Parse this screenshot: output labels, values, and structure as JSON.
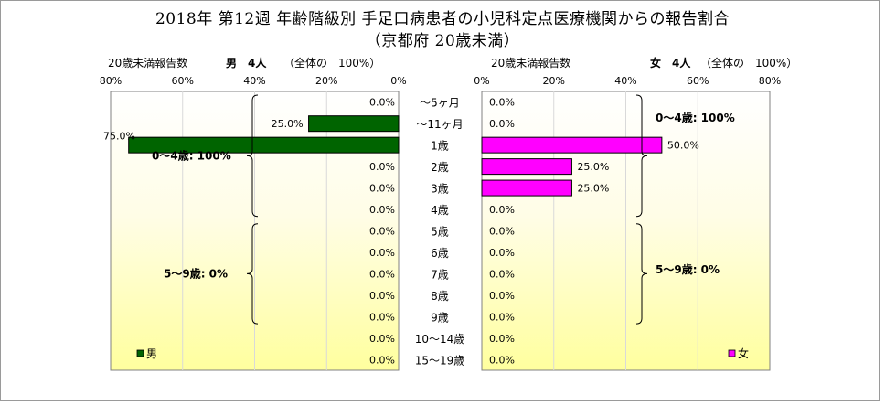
{
  "title": "2018年 第12週 年齢階級別 手足口病患者の小児科定点医療機関からの報告割合",
  "subtitle": "（京都府 20歳未満）",
  "chart_data": [
    {
      "type": "bar",
      "panel": "male",
      "orientation": "horizontal-reversed",
      "header_left": "20歳未満報告数",
      "header_label": "男　4人",
      "header_total": "（全体の　100%）",
      "xlim": [
        0,
        80
      ],
      "ticks": [
        "80%",
        "60%",
        "40%",
        "20%",
        "0%"
      ],
      "legend": "男",
      "color": "#006400",
      "categories": [
        "～5ヶ月",
        "～11ヶ月",
        "1歳",
        "2歳",
        "3歳",
        "4歳",
        "5歳",
        "6歳",
        "7歳",
        "8歳",
        "9歳",
        "10～14歳",
        "15～19歳"
      ],
      "values": [
        0,
        25,
        75,
        0,
        0,
        0,
        0,
        0,
        0,
        0,
        0,
        0,
        0
      ],
      "labels": [
        "0.0%",
        "25.0%",
        "75.0%",
        "0.0%",
        "0.0%",
        "0.0%",
        "0.0%",
        "0.0%",
        "0.0%",
        "0.0%",
        "0.0%",
        "0.0%",
        "0.0%"
      ],
      "groups": [
        {
          "label": "0～4歳: 100%"
        },
        {
          "label": "5～9歳: 0%"
        }
      ]
    },
    {
      "type": "bar",
      "panel": "female",
      "orientation": "horizontal",
      "header_left": "20歳未満報告数",
      "header_label": "女　4人",
      "header_total": "（全体の　100%）",
      "xlim": [
        0,
        80
      ],
      "ticks": [
        "0%",
        "20%",
        "40%",
        "60%",
        "80%"
      ],
      "legend": "女",
      "color": "#ff00ff",
      "categories": [
        "～5ヶ月",
        "～11ヶ月",
        "1歳",
        "2歳",
        "3歳",
        "4歳",
        "5歳",
        "6歳",
        "7歳",
        "8歳",
        "9歳",
        "10～14歳",
        "15～19歳"
      ],
      "values": [
        0,
        0,
        50,
        25,
        25,
        0,
        0,
        0,
        0,
        0,
        0,
        0,
        0
      ],
      "labels": [
        "0.0%",
        "0.0%",
        "50.0%",
        "25.0%",
        "25.0%",
        "0.0%",
        "0.0%",
        "0.0%",
        "0.0%",
        "0.0%",
        "0.0%",
        "0.0%",
        "0.0%"
      ],
      "groups": [
        {
          "label": "0～4歳: 100%"
        },
        {
          "label": "5～9歳: 0%"
        }
      ]
    }
  ]
}
